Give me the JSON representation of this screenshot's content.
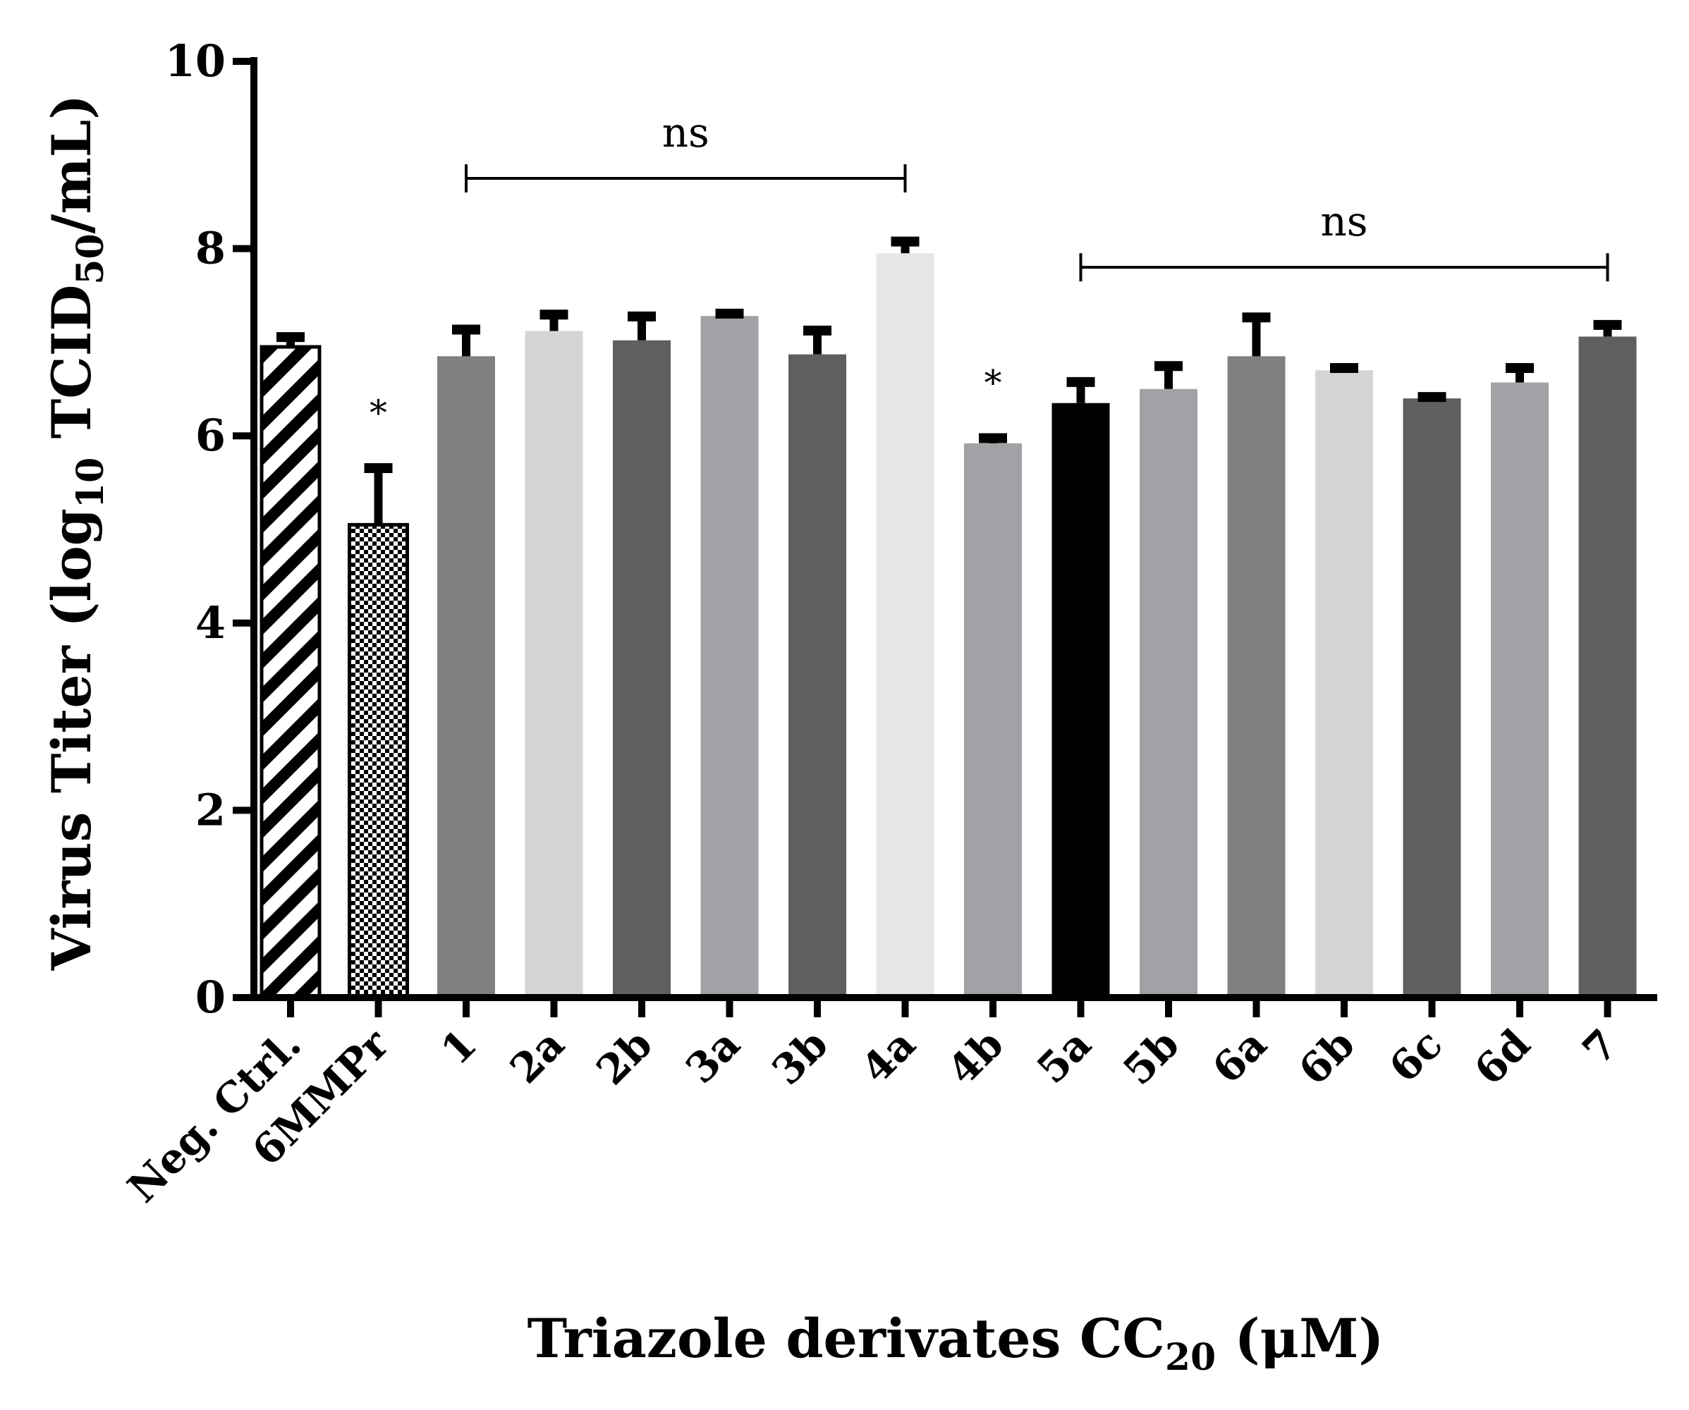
{
  "chart_data": {
    "type": "bar",
    "ylabel": {
      "prefix": "Virus Titer (log",
      "sub1": "10",
      "mid": " TCID",
      "sub2": "50",
      "suffix": "/mL)"
    },
    "xlabel": {
      "prefix": "Triazole derivates CC",
      "sub": "20",
      "suffix": " (μM)"
    },
    "ylim": [
      0,
      10
    ],
    "yticks": [
      "0",
      "2",
      "4",
      "6",
      "8",
      "10"
    ],
    "categories": [
      "Neg. Ctrl.",
      "6MMPr",
      "1",
      "2a",
      "2b",
      "3a",
      "3b",
      "4a",
      "4b",
      "5a",
      "5b",
      "6a",
      "6b",
      "6c",
      "6d",
      "7"
    ],
    "values": [
      6.95,
      5.05,
      6.85,
      7.12,
      7.02,
      7.28,
      6.87,
      7.95,
      5.92,
      6.35,
      6.5,
      6.85,
      6.7,
      6.4,
      6.57,
      7.06
    ],
    "errors": [
      0.15,
      0.65,
      0.33,
      0.22,
      0.3,
      0.07,
      0.3,
      0.17,
      0.1,
      0.27,
      0.29,
      0.46,
      0.07,
      0.06,
      0.2,
      0.17
    ],
    "colors": [
      "hatch",
      "checker",
      "#808080",
      "#d4d4d4",
      "#5f5f5f",
      "#a1a1a6",
      "#5f5f5f",
      "#e6e6e6",
      "#a1a1a6",
      "#000000",
      "#a1a1a6",
      "#808080",
      "#d4d4d4",
      "#5f5f5f",
      "#a1a1a6",
      "#5f5f5f"
    ],
    "significance_stars": [
      {
        "category": "6MMPr",
        "label": "*"
      },
      {
        "category": "4b",
        "label": "*"
      }
    ],
    "brackets": [
      {
        "from": "1",
        "to": "4a",
        "label": "ns",
        "y": 8.75
      },
      {
        "from": "5a",
        "to": "7",
        "label": "ns",
        "y": 7.8
      }
    ]
  }
}
